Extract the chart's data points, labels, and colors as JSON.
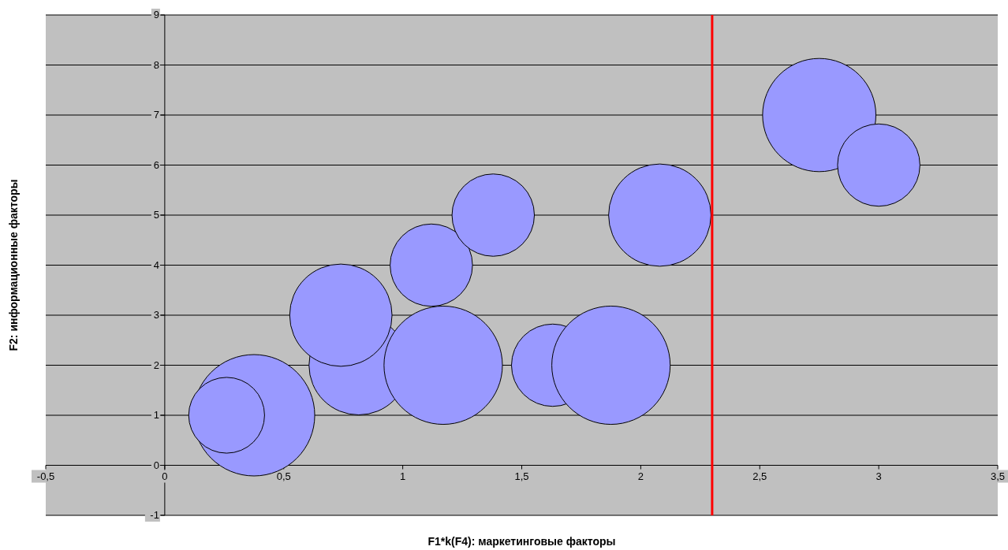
{
  "chart_data": {
    "type": "bubble",
    "xlabel": "F1*k(F4): маркетинговые факторы",
    "ylabel": "F2: информационные факторы",
    "xlim": [
      -0.5,
      3.5
    ],
    "xticks": [
      {
        "value": -0.5,
        "label": "-0,5"
      },
      0,
      {
        "value": 0.5,
        "label": "0,5"
      },
      1,
      {
        "value": 1.5,
        "label": "1,5"
      },
      2,
      {
        "value": 2.5,
        "label": "2,5"
      },
      3,
      {
        "value": 3.5,
        "label": "3,5"
      }
    ],
    "ylim": [
      -1,
      9
    ],
    "yticks": [
      -1,
      0,
      1,
      2,
      3,
      4,
      5,
      6,
      7,
      8,
      9
    ],
    "grid": "y",
    "series": [
      {
        "color": "#9999ff",
        "x": [
          0.375,
          0.26,
          0.815,
          0.74,
          1.17,
          1.12,
          1.38,
          1.63,
          1.875,
          2.08,
          2.75,
          3.0
        ],
        "values": [
          1,
          1,
          2,
          3,
          2,
          4,
          5,
          2,
          2,
          5,
          7,
          6
        ],
        "sizes": [
          1,
          0.39,
          0.67,
          0.71,
          0.95,
          0.46,
          0.46,
          0.46,
          0.95,
          0.71,
          0.87,
          0.46
        ]
      }
    ],
    "ref_lines": [
      {
        "axis": "x",
        "value": 2.3,
        "color": "#ff0000"
      }
    ]
  }
}
